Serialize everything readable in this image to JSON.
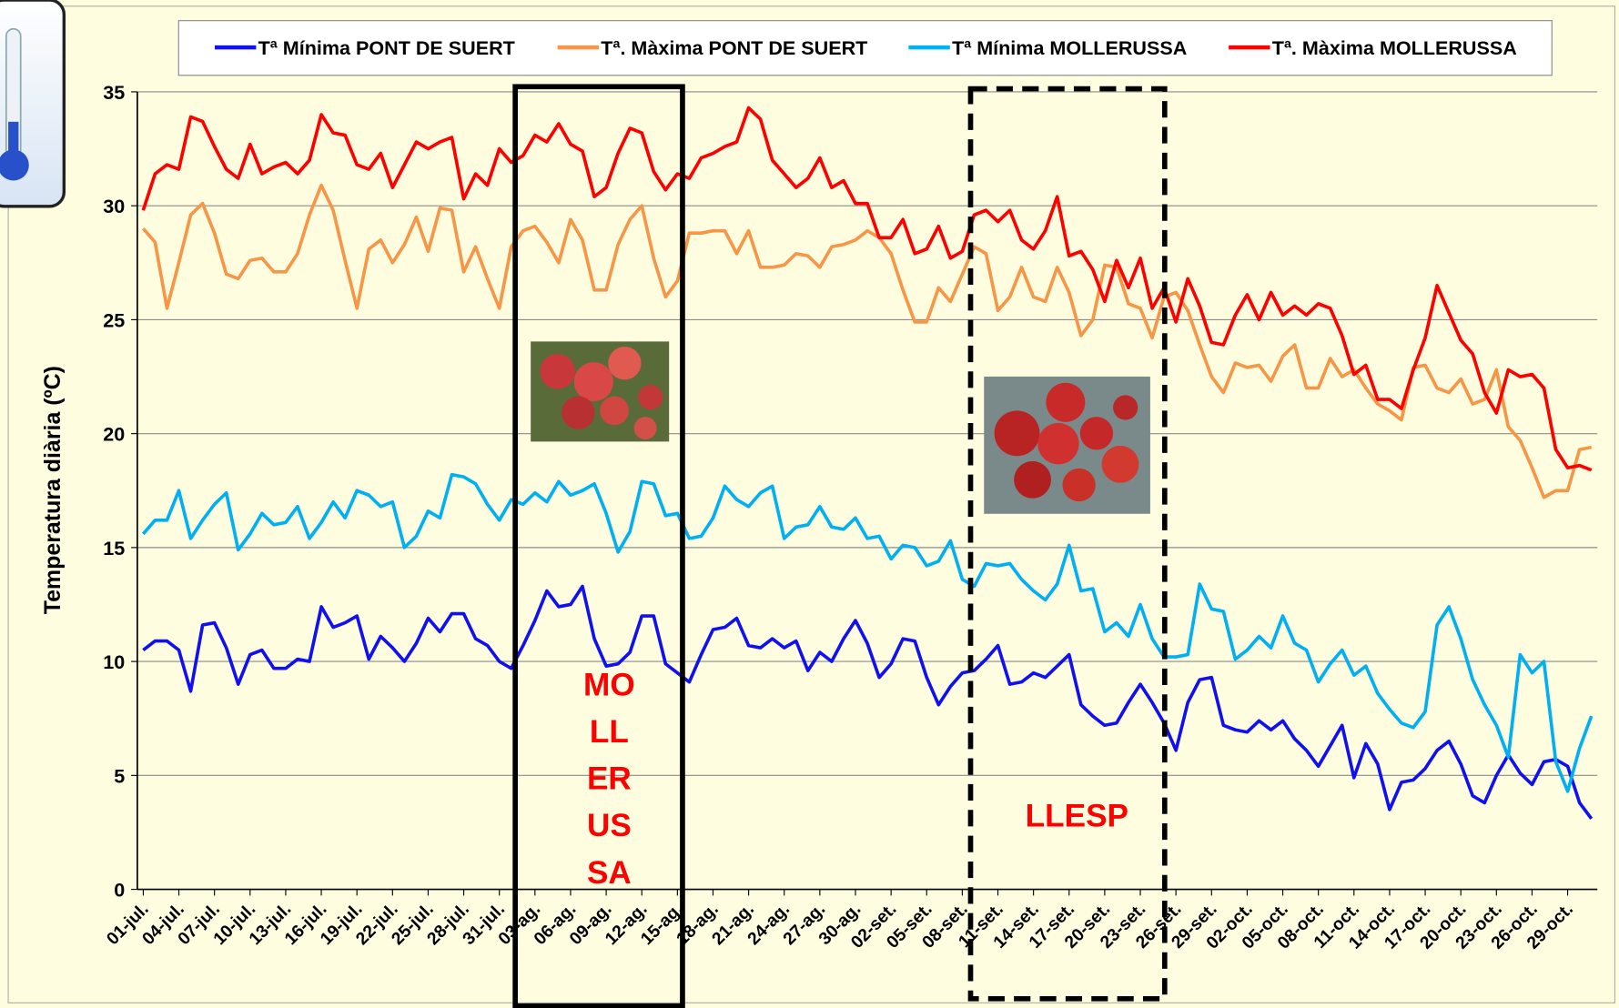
{
  "chart_data": {
    "type": "line",
    "y_label": "Temperatura diària (ºC)",
    "categories": [
      "01-jul.",
      null,
      null,
      "04-jul.",
      null,
      null,
      "07-jul.",
      null,
      null,
      "10-jul.",
      null,
      null,
      "13-jul.",
      null,
      null,
      "16-jul.",
      null,
      null,
      "19-jul.",
      null,
      null,
      "22-jul.",
      null,
      null,
      "25-jul.",
      null,
      null,
      "28-jul.",
      null,
      null,
      "31-jul.",
      null,
      null,
      "03-ag.",
      null,
      null,
      "06-ag.",
      null,
      null,
      "09-ag.",
      null,
      null,
      "12-ag.",
      null,
      null,
      "15-ag.",
      null,
      null,
      "18-ag.",
      null,
      null,
      "21-ag.",
      null,
      null,
      "24-ag.",
      null,
      null,
      "27-ag.",
      null,
      null,
      "30-ag.",
      null,
      null,
      "02-set.",
      null,
      null,
      "05-set.",
      null,
      null,
      "08-set.",
      null,
      null,
      "11-set.",
      null,
      null,
      "14-set.",
      null,
      null,
      "17-set.",
      null,
      null,
      "20-set.",
      null,
      null,
      "23-set.",
      null,
      null,
      "26-set.",
      null,
      null,
      "29-set.",
      null,
      null,
      "02-oct.",
      null,
      null,
      "05-oct.",
      null,
      null,
      "08-oct.",
      null,
      null,
      "11-oct.",
      null,
      null,
      "14-oct.",
      null,
      null,
      "17-oct.",
      null,
      null,
      "20-oct.",
      null,
      null,
      "23-oct.",
      null,
      null,
      "26-oct.",
      null,
      null,
      "29-oct.",
      null,
      null
    ],
    "series": [
      {
        "name": "Tª Mínima PONT DE SUERT",
        "color": "#1010f0",
        "values": [
          10.5,
          10.9,
          10.9,
          10.5,
          8.7,
          11.6,
          11.7,
          10.6,
          9.0,
          10.3,
          10.5,
          9.7,
          9.7,
          10.1,
          10.0,
          12.4,
          11.5,
          11.7,
          12.0,
          10.1,
          11.1,
          10.6,
          10.0,
          10.8,
          11.9,
          11.3,
          12.1,
          12.1,
          11.0,
          10.7,
          10.0,
          9.7,
          10.7,
          11.8,
          13.1,
          12.4,
          12.5,
          13.3,
          11.0,
          9.8,
          9.9,
          10.4,
          12.0,
          12.0,
          9.9,
          9.5,
          9.1,
          10.3,
          11.4,
          11.5,
          11.9,
          10.7,
          10.6,
          11.0,
          10.6,
          10.9,
          9.6,
          10.4,
          10.0,
          11.0,
          11.8,
          10.8,
          9.3,
          9.9,
          11.0,
          10.9,
          9.3,
          8.1,
          8.9,
          9.5,
          9.6,
          10.1,
          10.7,
          9.0,
          9.1,
          9.5,
          9.3,
          9.8,
          10.3,
          8.1,
          7.6,
          7.2,
          7.3,
          8.2,
          9.0,
          8.2,
          7.3,
          6.1,
          8.2,
          9.2,
          9.3,
          7.2,
          7.0,
          6.9,
          7.4,
          7.0,
          7.4,
          6.6,
          6.1,
          5.4,
          6.3,
          7.2,
          4.9,
          6.4,
          5.5,
          3.5,
          4.7,
          4.8,
          5.3,
          6.1,
          6.5,
          5.5,
          4.1,
          3.8,
          5.0,
          5.9,
          5.1,
          4.6,
          5.6,
          5.7,
          5.4,
          3.8,
          3.1
        ]
      },
      {
        "name": "Tª. Màxima PONT DE SUERT",
        "color": "#f79646",
        "values": [
          29.0,
          28.4,
          25.5,
          27.5,
          29.6,
          30.1,
          28.8,
          27.0,
          26.8,
          27.6,
          27.7,
          27.1,
          27.1,
          27.9,
          29.6,
          30.9,
          29.8,
          27.6,
          25.5,
          28.1,
          28.5,
          27.5,
          28.3,
          29.5,
          28.0,
          29.9,
          29.8,
          27.1,
          28.2,
          26.8,
          25.5,
          28.2,
          28.9,
          29.1,
          28.4,
          27.5,
          29.4,
          28.5,
          26.3,
          26.3,
          28.3,
          29.4,
          30.0,
          27.7,
          26.0,
          26.7,
          28.8,
          28.8,
          28.9,
          28.9,
          27.9,
          28.9,
          27.3,
          27.3,
          27.4,
          27.9,
          27.8,
          27.3,
          28.2,
          28.3,
          28.5,
          28.9,
          28.6,
          27.9,
          26.3,
          24.9,
          24.9,
          26.4,
          25.8,
          27.0,
          28.2,
          27.9,
          25.4,
          26.0,
          27.3,
          26.0,
          25.8,
          27.3,
          26.2,
          24.3,
          25.0,
          27.4,
          27.3,
          25.7,
          25.5,
          24.2,
          26.0,
          26.2,
          25.4,
          23.9,
          22.5,
          21.8,
          23.1,
          22.9,
          23.0,
          22.3,
          23.4,
          23.9,
          22.0,
          22.0,
          23.3,
          22.5,
          22.8,
          22.0,
          21.3,
          21.0,
          20.6,
          22.9,
          23.0,
          22.0,
          21.8,
          22.4,
          21.3,
          21.5,
          22.8,
          20.3,
          19.7,
          18.5,
          17.2,
          17.5,
          17.5,
          19.3,
          19.4
        ]
      },
      {
        "name": "Tª Mínima MOLLERUSSA",
        "color": "#00b0f0",
        "values": [
          15.6,
          16.2,
          16.2,
          17.5,
          15.4,
          16.2,
          16.9,
          17.4,
          14.9,
          15.6,
          16.5,
          16.0,
          16.1,
          16.8,
          15.4,
          16.1,
          17.0,
          16.3,
          17.5,
          17.3,
          16.8,
          17.0,
          15.0,
          15.5,
          16.6,
          16.3,
          18.2,
          18.1,
          17.8,
          16.9,
          16.2,
          17.1,
          16.9,
          17.4,
          17.0,
          17.9,
          17.3,
          17.5,
          17.8,
          16.5,
          14.8,
          15.7,
          17.9,
          17.8,
          16.4,
          16.5,
          15.4,
          15.5,
          16.3,
          17.7,
          17.1,
          16.8,
          17.4,
          17.7,
          15.4,
          15.9,
          16.0,
          16.8,
          15.9,
          15.8,
          16.3,
          15.4,
          15.5,
          14.5,
          15.1,
          15.0,
          14.2,
          14.4,
          15.3,
          13.6,
          13.3,
          14.3,
          14.2,
          14.3,
          13.6,
          13.1,
          12.7,
          13.4,
          15.1,
          13.1,
          13.2,
          11.3,
          11.7,
          11.1,
          12.5,
          11.0,
          10.2,
          10.2,
          10.3,
          13.4,
          12.3,
          12.2,
          10.1,
          10.5,
          11.1,
          10.6,
          12.0,
          10.8,
          10.5,
          9.1,
          9.9,
          10.5,
          9.4,
          9.8,
          8.6,
          7.9,
          7.3,
          7.1,
          7.8,
          11.6,
          12.4,
          11.0,
          9.2,
          8.1,
          7.2,
          5.8,
          10.3,
          9.5,
          10.0,
          5.6,
          4.3,
          6.2,
          7.6
        ]
      },
      {
        "name": "Tª. Màxima MOLLERUSSA",
        "color": "#ff0000",
        "values": [
          29.8,
          31.4,
          31.8,
          31.6,
          33.9,
          33.7,
          32.6,
          31.6,
          31.2,
          32.7,
          31.4,
          31.7,
          31.9,
          31.4,
          32.0,
          34.0,
          33.2,
          33.1,
          31.8,
          31.6,
          32.3,
          30.8,
          31.8,
          32.8,
          32.5,
          32.8,
          33.0,
          30.3,
          31.4,
          30.9,
          32.5,
          31.9,
          32.2,
          33.1,
          32.8,
          33.6,
          32.7,
          32.4,
          30.4,
          30.8,
          32.3,
          33.4,
          33.2,
          31.5,
          30.7,
          31.4,
          31.2,
          32.1,
          32.3,
          32.6,
          32.8,
          34.3,
          33.8,
          32.0,
          31.4,
          30.8,
          31.2,
          32.1,
          30.8,
          31.1,
          30.1,
          30.1,
          28.6,
          28.6,
          29.4,
          27.9,
          28.1,
          29.1,
          27.7,
          28.0,
          29.6,
          29.8,
          29.3,
          29.8,
          28.5,
          28.1,
          28.9,
          30.4,
          27.8,
          28.0,
          27.2,
          25.8,
          27.6,
          26.4,
          27.7,
          25.5,
          26.4,
          24.9,
          26.8,
          25.6,
          24.0,
          23.9,
          25.2,
          26.1,
          25.0,
          26.2,
          25.2,
          25.6,
          25.2,
          25.7,
          25.5,
          24.3,
          22.6,
          23.0,
          21.5,
          21.5,
          21.1,
          22.8,
          24.2,
          26.5,
          25.3,
          24.1,
          23.5,
          21.8,
          20.9,
          22.8,
          22.5,
          22.6,
          22.0,
          19.3,
          18.5,
          18.6,
          18.4
        ]
      }
    ],
    "ylim": [
      0,
      35
    ],
    "yticks": [
      0,
      5,
      10,
      15,
      20,
      25,
      30,
      35
    ],
    "grid": true,
    "legend": "top",
    "annotations": [
      [
        "MO",
        "LL",
        "ER",
        "US",
        "SA"
      ],
      [
        "LLESP"
      ]
    ]
  }
}
